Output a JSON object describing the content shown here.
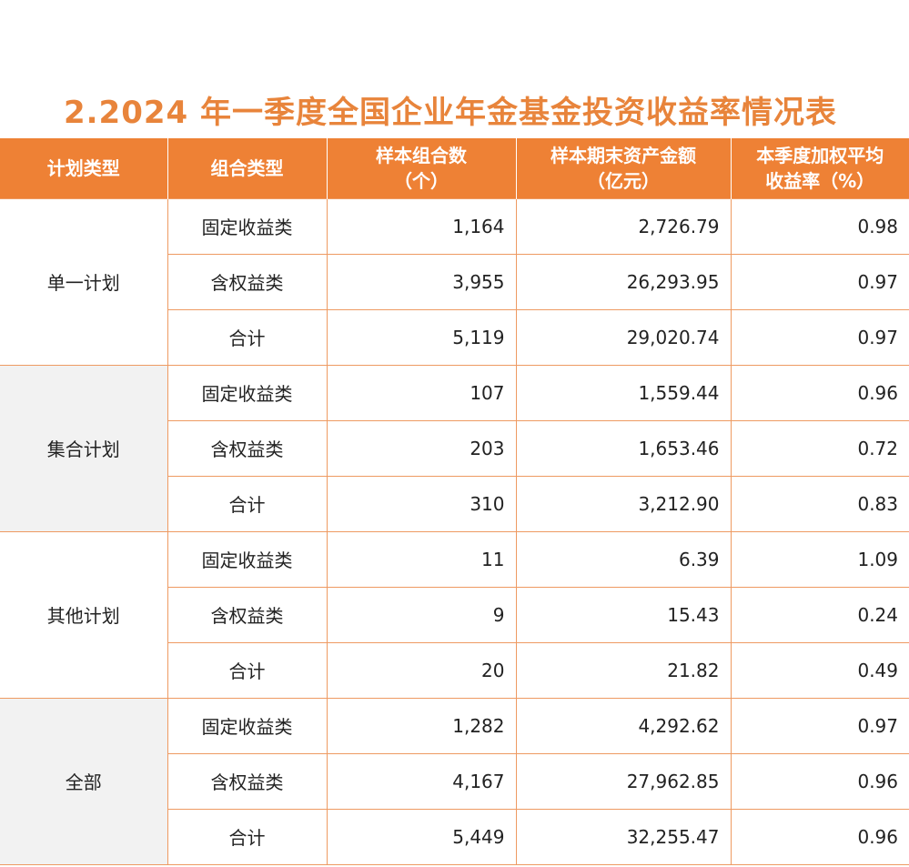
{
  "title": "2.2024 年一季度全国企业年金基金投资收益率情况表",
  "header": {
    "plan_type": "计划类型",
    "portfolio_type": "组合类型",
    "sample_count_line1": "样本组合数",
    "sample_count_line2": "（个）",
    "asset_line1": "样本期末资产金额",
    "asset_line2": "（亿元）",
    "return_line1": "本季度加权平均",
    "return_line2": "收益率（%）"
  },
  "groups": [
    {
      "plan": "单一计划",
      "rows": [
        {
          "type": "固定收益类",
          "count": "1,164",
          "assets": "2,726.79",
          "return": "0.98"
        },
        {
          "type": "含权益类",
          "count": "3,955",
          "assets": "26,293.95",
          "return": "0.97"
        },
        {
          "type": "合计",
          "count": "5,119",
          "assets": "29,020.74",
          "return": "0.97"
        }
      ]
    },
    {
      "plan": "集合计划",
      "rows": [
        {
          "type": "固定收益类",
          "count": "107",
          "assets": "1,559.44",
          "return": "0.96"
        },
        {
          "type": "含权益类",
          "count": "203",
          "assets": "1,653.46",
          "return": "0.72"
        },
        {
          "type": "合计",
          "count": "310",
          "assets": "3,212.90",
          "return": "0.83"
        }
      ]
    },
    {
      "plan": "其他计划",
      "rows": [
        {
          "type": "固定收益类",
          "count": "11",
          "assets": "6.39",
          "return": "1.09"
        },
        {
          "type": "含权益类",
          "count": "9",
          "assets": "15.43",
          "return": "0.24"
        },
        {
          "type": "合计",
          "count": "20",
          "assets": "21.82",
          "return": "0.49"
        }
      ]
    },
    {
      "plan": "全部",
      "rows": [
        {
          "type": "固定收益类",
          "count": "1,282",
          "assets": "4,292.62",
          "return": "0.97"
        },
        {
          "type": "含权益类",
          "count": "4,167",
          "assets": "27,962.85",
          "return": "0.96"
        },
        {
          "type": "合计",
          "count": "5,449",
          "assets": "32,255.47",
          "return": "0.96"
        }
      ]
    }
  ],
  "colors": {
    "title": "#E8843B",
    "header_bg": "#EE8135",
    "header_text": "#FFFFFF",
    "grid_line": "#EE9A62",
    "shaded_group_bg": "#F2F2F2"
  }
}
